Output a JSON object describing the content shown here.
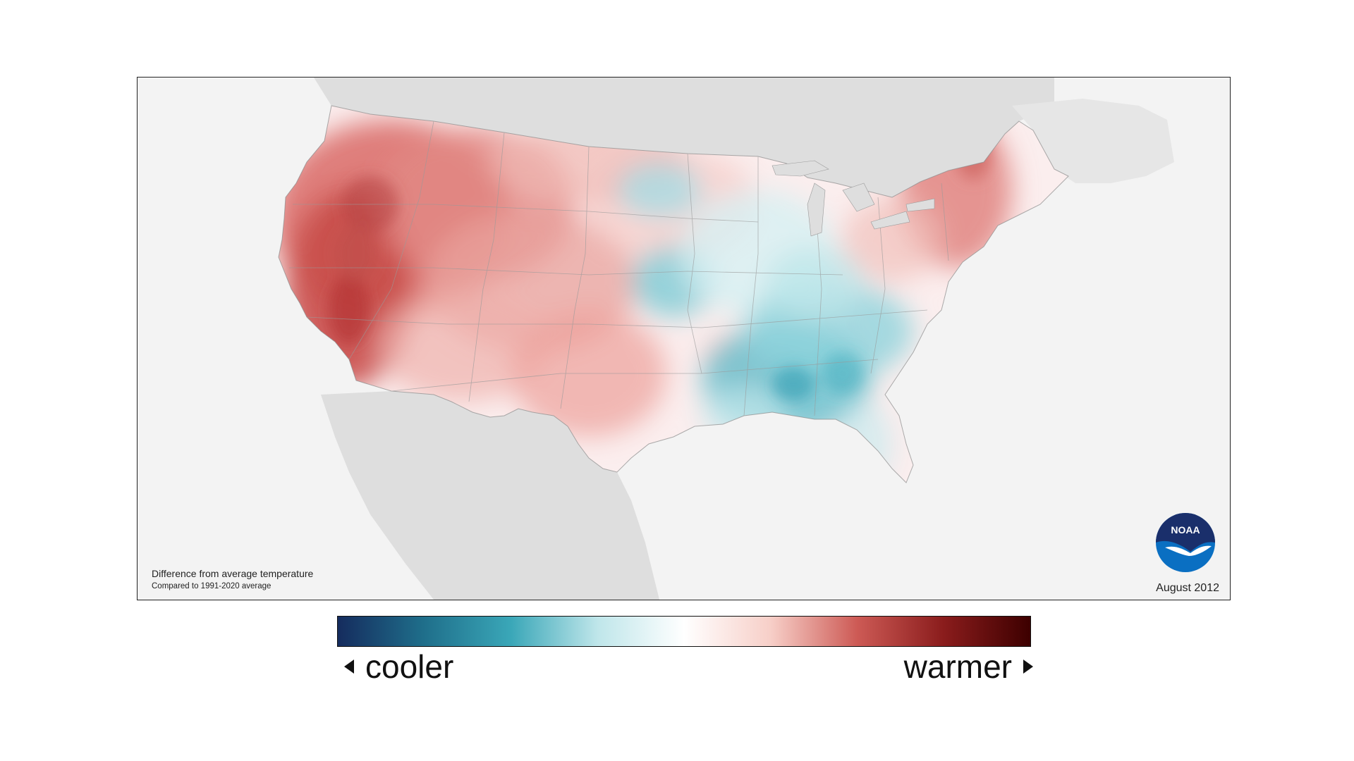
{
  "map": {
    "caption_title": "Difference from average temperature",
    "caption_subtitle": "Compared to 1991-2020 average",
    "date": "August 2012",
    "logo_text": "NOAA"
  },
  "legend": {
    "cool_label": "cooler",
    "warm_label": "warmer",
    "colors": [
      "#152c5e",
      "#1f6f8b",
      "#3aa7b8",
      "#bfe6ea",
      "#ffffff",
      "#f7cfc8",
      "#cd5a55",
      "#8a1c1c",
      "#3d0000"
    ]
  },
  "colors": {
    "warm": "#d8605c",
    "warm_dark": "#b83a3a",
    "cool": "#4fb7c6",
    "cool_dark": "#1f8fa3",
    "land_outside": "#dedede",
    "ocean": "#f3f3f3",
    "noaa_blue": "#0a6fc2",
    "noaa_navy": "#1a2f6b"
  }
}
